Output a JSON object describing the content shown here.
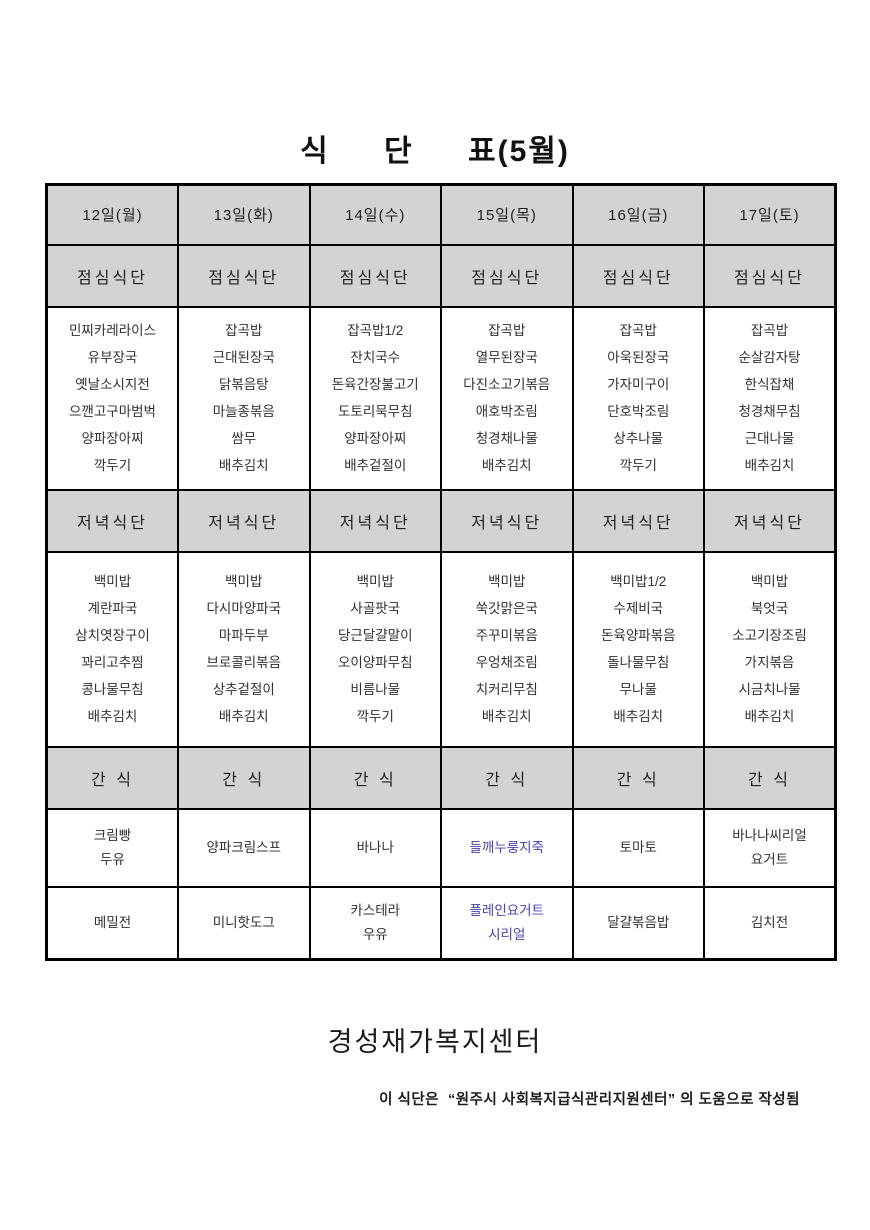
{
  "page": {
    "title": "식 단 표(5월)"
  },
  "table": {
    "days": [
      "12일(월)",
      "13일(화)",
      "14일(수)",
      "15일(목)",
      "16일(금)",
      "17일(토)"
    ],
    "section_labels": {
      "lunch": "점심식단",
      "dinner": "저녁식단",
      "snack": "간 식"
    },
    "lunch_menus": [
      "민찌카레라이스\n유부장국\n옛날소시지전\n으깬고구마범벅\n양파장아찌\n깍두기",
      "잡곡밥\n근대된장국\n닭볶음탕\n마늘종볶음\n쌈무\n배추김치",
      "잡곡밥1/2\n잔치국수\n돈육간장불고기\n도토리묵무침\n양파장아찌\n배추겉절이",
      "잡곡밥\n열무된장국\n다진소고기볶음\n애호박조림\n청경채나물\n배추김치",
      "잡곡밥\n아욱된장국\n가자미구이\n단호박조림\n상추나물\n깍두기",
      "잡곡밥\n순살감자탕\n한식잡채\n청경채무침\n근대나물\n배추김치"
    ],
    "dinner_menus": [
      "백미밥\n계란파국\n삼치엿장구이\n꽈리고추찜\n콩나물무침\n배추김치",
      "백미밥\n다시마양파국\n마파두부\n브로콜리볶음\n상추겉절이\n배추김치",
      "백미밥\n사골팟국\n당근달걀말이\n오이양파무침\n비름나물\n깍두기",
      "백미밥\n쑥갓맑은국\n주꾸미볶음\n우엉채조림\n치커리무침\n배추김치",
      "백미밥1/2\n수제비국\n돈육양파볶음\n돌나물무침\n무나물\n배추김치",
      "백미밥\n북엇국\n소고기장조림\n가지볶음\n시금치나물\n배추김치"
    ],
    "snack_row1": [
      {
        "text": "크림빵\n두유"
      },
      {
        "text": "양파크림스프"
      },
      {
        "text": "바나나"
      },
      {
        "text": "들깨누룽지죽",
        "color": "#4444b4"
      },
      {
        "text": "토마토"
      },
      {
        "text": "바나나씨리얼\n요거트"
      }
    ],
    "snack_row2": [
      {
        "text": "메밀전"
      },
      {
        "text": "미니핫도그"
      },
      {
        "text": "카스테라\n우유"
      },
      {
        "text": "플레인요거트\n시리얼",
        "color": "#4444b4"
      },
      {
        "text": "달걀볶음밥"
      },
      {
        "text": "김치전"
      }
    ]
  },
  "footer": {
    "org_name": "경성재가복지센터",
    "note": "이 식단은  “원주시 사회복지급식관리지원센터” 의 도움으로 작성됨"
  },
  "colors": {
    "header_bg": "#d3d3d3",
    "border": "#000000",
    "text": "#303030",
    "accent_blue": "#4444b4"
  }
}
